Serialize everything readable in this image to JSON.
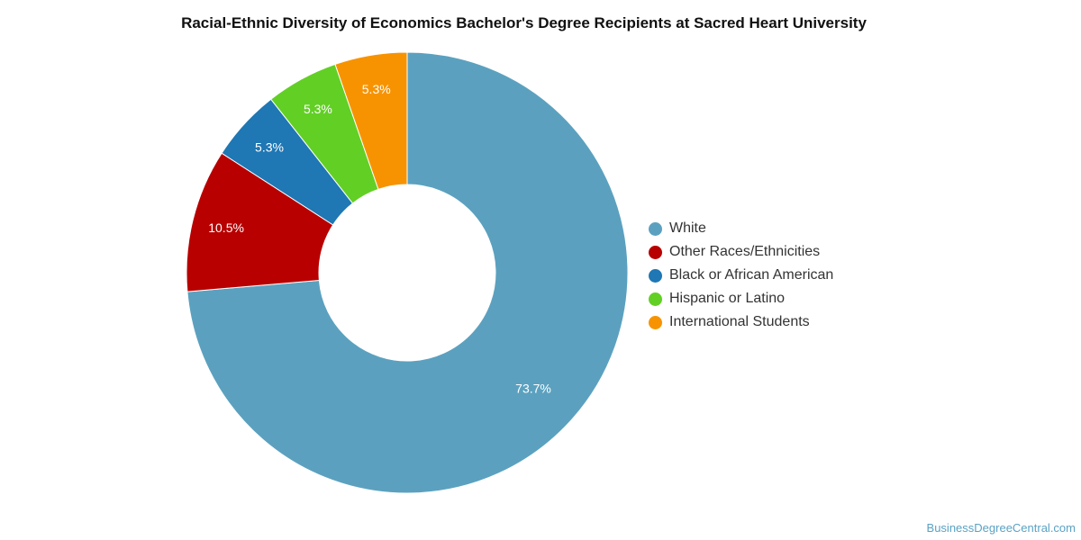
{
  "chart_data": {
    "type": "pie",
    "variant": "donut",
    "title": "Racial-Ethnic Diversity of Economics Bachelor's Degree Recipients at Sacred Heart University",
    "legend_position": "right",
    "slices": [
      {
        "name": "White",
        "value": 73.7,
        "label": "73.7%",
        "color": "#5ba1bf"
      },
      {
        "name": "Other Races/Ethnicities",
        "value": 10.5,
        "label": "10.5%",
        "color": "#b80000"
      },
      {
        "name": "Black or African American",
        "value": 5.3,
        "label": "5.3%",
        "color": "#1f77b4"
      },
      {
        "name": "Hispanic or Latino",
        "value": 5.3,
        "label": "5.3%",
        "color": "#62cf25"
      },
      {
        "name": "International Students",
        "value": 5.3,
        "label": "5.3%",
        "color": "#f79300"
      }
    ]
  },
  "watermark": "BusinessDegreeCentral.com"
}
